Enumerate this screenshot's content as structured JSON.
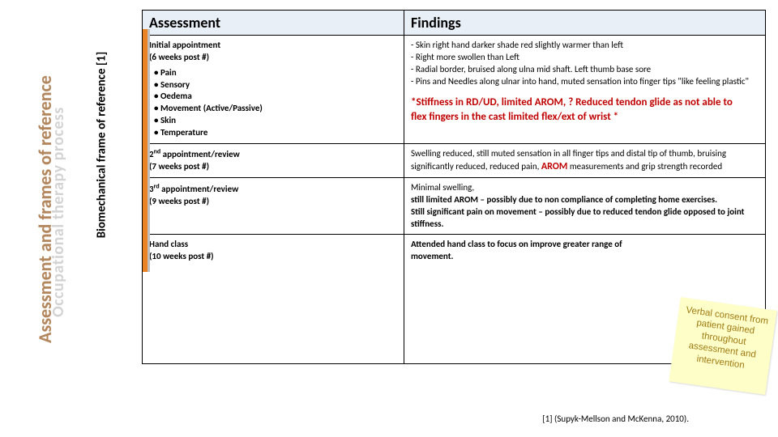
{
  "vertical_labels": {
    "outer": "Assessment and frames of reference",
    "middle": "Occupational therapy process",
    "inner": "Biomechanical frame of reference [1]"
  },
  "table": {
    "headers": {
      "assessment": "Assessment",
      "findings": "Findings"
    },
    "rows": [
      {
        "assessment_title": "Initial appointment",
        "assessment_subtitle": "(6 weeks post #)",
        "assessment_bullets": [
          "Pain",
          "Sensory",
          "Oedema",
          "Movement (Active/Passive)",
          "Skin",
          "Temperature"
        ],
        "findings_lines": [
          "  -  Skin right  hand darker shade red slightly warmer than left",
          "-    Right more swollen than Left",
          "-  Radial border, bruised along ulna mid shaft. Left thumb base sore",
          "  -  Pins and Needles along ulnar into hand, muted sensation into finger tips \"like feeling plastic\""
        ],
        "findings_highlight": "*Stiffness in RD/UD, limited AROM, ? Reduced tendon glide as not able to flex fingers in the cast  limited flex/ext of wrist *"
      },
      {
        "assessment_title_html": "2<span class='sup'>nd</span> appointment/review",
        "assessment_subtitle": "(7 weeks post #)",
        "findings_text_pre": "Swelling reduced, still muted sensation in all finger tips and distal tip of thumb, bruising significantly reduced, reduced pain, ",
        "findings_red_inline": "AROM",
        "findings_text_post": " measurements and grip strength recorded"
      },
      {
        "assessment_title_html": "3<span class='sup'>rd</span> appointment/review",
        "assessment_subtitle": "(9 weeks post #)",
        "findings_text": "Minimal swelling,",
        "findings_bold_lines": [
          "still limited AROM – possibly due to non compliance of completing home exercises.",
          "Still significant pain on movement – possibly due to reduced tendon glide opposed to joint stiffness."
        ]
      },
      {
        "assessment_title": "Hand class",
        "assessment_subtitle": "(10 weeks post #)",
        "findings_bold": "Attended hand class to focus on improve greater range of movement."
      }
    ]
  },
  "sticky_note": "Verbal consent from patient gained throughout assessment and intervention",
  "citation": "[1] (Supyk-Mellson and McKenna, 2010).",
  "colors": {
    "header_bg": "#e9eff7",
    "orange_accent": "#e98324",
    "red_highlight": "#c00000",
    "sticky_bg": "#fefec8",
    "sticky_text": "#9e7a12"
  }
}
